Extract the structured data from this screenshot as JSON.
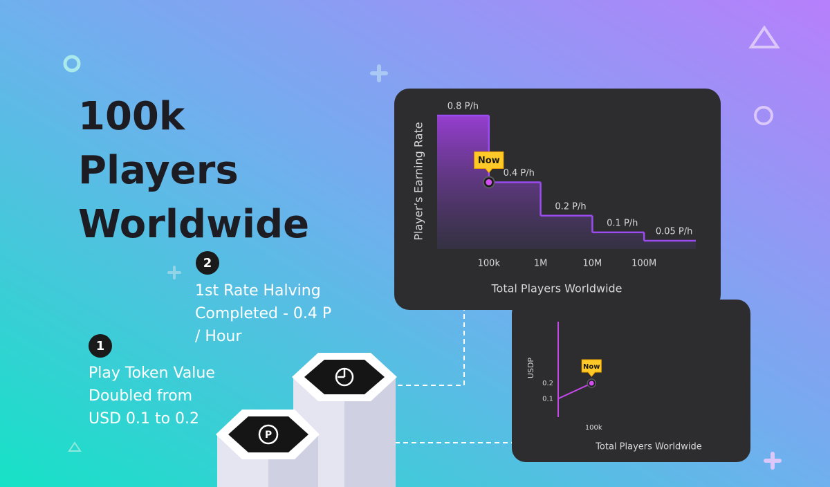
{
  "headline": "100k Players Worldwide",
  "steps": [
    {
      "number": "1",
      "text": "Play Token Value Doubled from USD 0.1 to 0.2"
    },
    {
      "number": "2",
      "text": "1st Rate Halving Completed - 0.4 P / Hour"
    }
  ],
  "chart_data": [
    {
      "type": "step",
      "xlabel": "Total Players Worldwide",
      "ylabel": "Player’s Earning Rate",
      "xscale": "log",
      "x": [
        10000,
        100000,
        1000000,
        10000000,
        100000000
      ],
      "xlim": [
        10000,
        1000000000
      ],
      "xticks": [
        {
          "value": 100000,
          "label": "100k"
        },
        {
          "value": 1000000,
          "label": "1M"
        },
        {
          "value": 10000000,
          "label": "10M"
        },
        {
          "value": 100000000,
          "label": "100M"
        }
      ],
      "ylim": [
        0,
        0.8
      ],
      "series": [
        {
          "color": "#9a4cf0",
          "values": [
            0.8,
            0.4,
            0.2,
            0.1,
            0.05
          ],
          "value_labels": [
            "0.8 P/h",
            "0.4 P/h",
            "0.2 P/h",
            "0.1 P/h",
            "0.05 P/h"
          ]
        }
      ],
      "annotations": [
        {
          "text": "Now",
          "x": 100000,
          "y": 0.4
        }
      ]
    },
    {
      "type": "line",
      "xlabel": "Total Players Worldwide",
      "ylabel": "USDP",
      "x": [
        0,
        100000
      ],
      "xlim": [
        0,
        520000
      ],
      "xticks": [
        {
          "value": 100000,
          "label": "100k"
        }
      ],
      "ylim": [
        -0.02,
        0.6
      ],
      "yticks": [
        0.1,
        0.2
      ],
      "series": [
        {
          "color": "#c447e8",
          "values": [
            0.1,
            0.2
          ]
        }
      ],
      "annotations": [
        {
          "text": "Now",
          "x": 100000,
          "y": 0.2
        }
      ]
    }
  ]
}
